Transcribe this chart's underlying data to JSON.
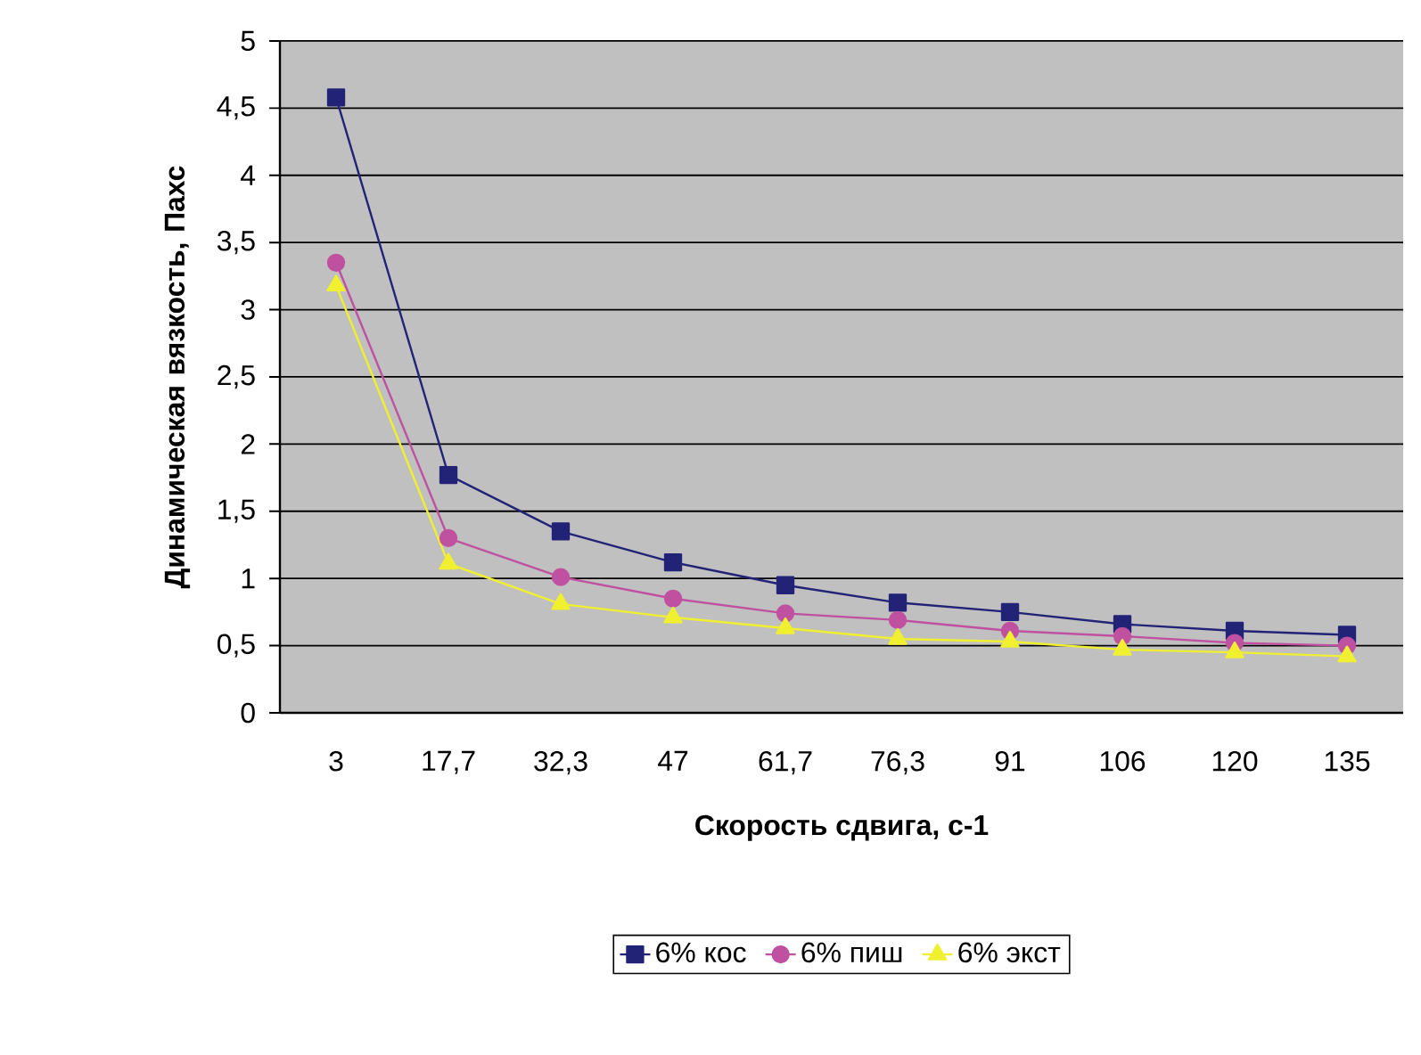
{
  "chart_data": {
    "type": "line",
    "xlabel": "Скорость сдвига, с-1",
    "ylabel": "Динамическая вязкость, Пахс",
    "categories": [
      "3",
      "17,7",
      "32,3",
      "47",
      "61,7",
      "76,3",
      "91",
      "106",
      "120",
      "135"
    ],
    "series": [
      {
        "name": "6% кос",
        "color": "#222277",
        "marker": "square",
        "values": [
          4.58,
          1.77,
          1.35,
          1.12,
          0.95,
          0.82,
          0.75,
          0.66,
          0.61,
          0.58
        ]
      },
      {
        "name": "6% пиш",
        "color": "#c050a0",
        "marker": "circle",
        "values": [
          3.35,
          1.3,
          1.01,
          0.85,
          0.74,
          0.69,
          0.61,
          0.57,
          0.52,
          0.5
        ]
      },
      {
        "name": "6% экст",
        "color": "#f0f030",
        "marker": "triangle",
        "values": [
          3.18,
          1.11,
          0.81,
          0.71,
          0.63,
          0.55,
          0.53,
          0.47,
          0.45,
          0.42
        ]
      }
    ],
    "ylim": [
      0,
      5
    ],
    "yticks": [
      0,
      {
        "value": 0.5,
        "label": "0,5"
      },
      1,
      {
        "value": 1.5,
        "label": "1,5"
      },
      2,
      {
        "value": 2.5,
        "label": "2,5"
      },
      3,
      {
        "value": 3.5,
        "label": "3,5"
      },
      4,
      {
        "value": 4.5,
        "label": "4,5"
      },
      5
    ],
    "grid": "y",
    "legend": "bottom",
    "line_style": "solid"
  }
}
